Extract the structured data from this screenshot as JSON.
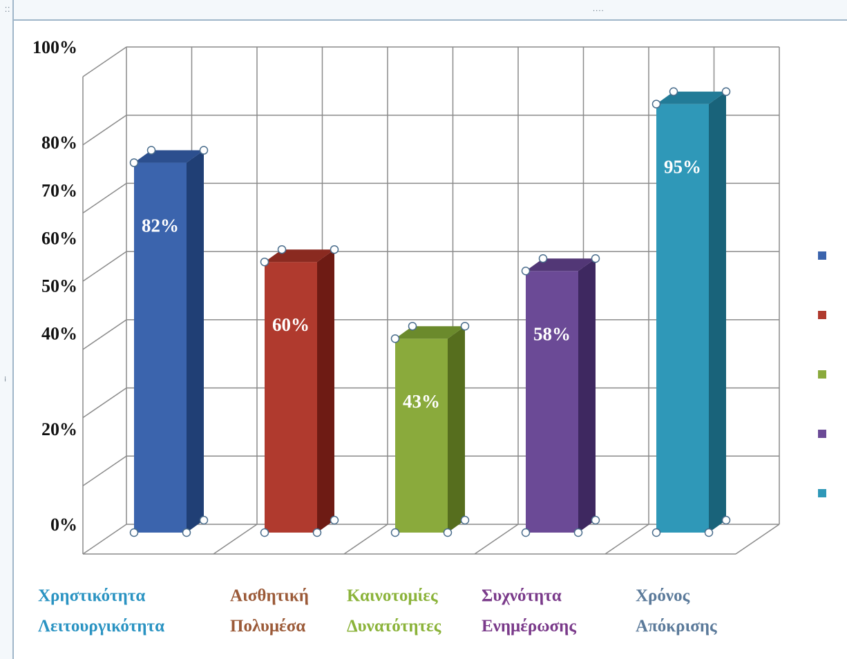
{
  "chart_data": {
    "type": "bar",
    "style": "3d-column",
    "categories": [
      [
        "Χρηστικότητα",
        "Λειτουργικότητα"
      ],
      [
        "Αισθητική",
        "Πολυμέσα"
      ],
      [
        "Καινοτομίες",
        "Δυνατότητες"
      ],
      [
        "Συχνότητα",
        "Ενημέρωσης"
      ],
      [
        "Χρόνος",
        "Απόκρισης"
      ]
    ],
    "values": [
      82,
      60,
      43,
      58,
      95
    ],
    "data_labels": [
      "82%",
      "60%",
      "43%",
      "58%",
      "95%"
    ],
    "y_tick_labels": [
      "0%",
      "20%",
      "40%",
      "50%",
      "60%",
      "70%",
      "80%",
      "100%"
    ],
    "ylim": [
      0,
      100
    ],
    "grid": true,
    "legend": "right",
    "colors": {
      "front": [
        "#3b64ad",
        "#b03a2e",
        "#8aaa3c",
        "#6b4a96",
        "#2f98b8"
      ],
      "side": [
        "#203f75",
        "#6e1b14",
        "#566e1e",
        "#3e2860",
        "#19637a"
      ],
      "top": [
        "#2c4f8e",
        "#8a2a20",
        "#6b8a2c",
        "#523776",
        "#227b97"
      ],
      "category_text": [
        "#2a93c2",
        "#9b5a38",
        "#8bb33a",
        "#7a3a8a",
        "#5b7a9a"
      ]
    }
  }
}
